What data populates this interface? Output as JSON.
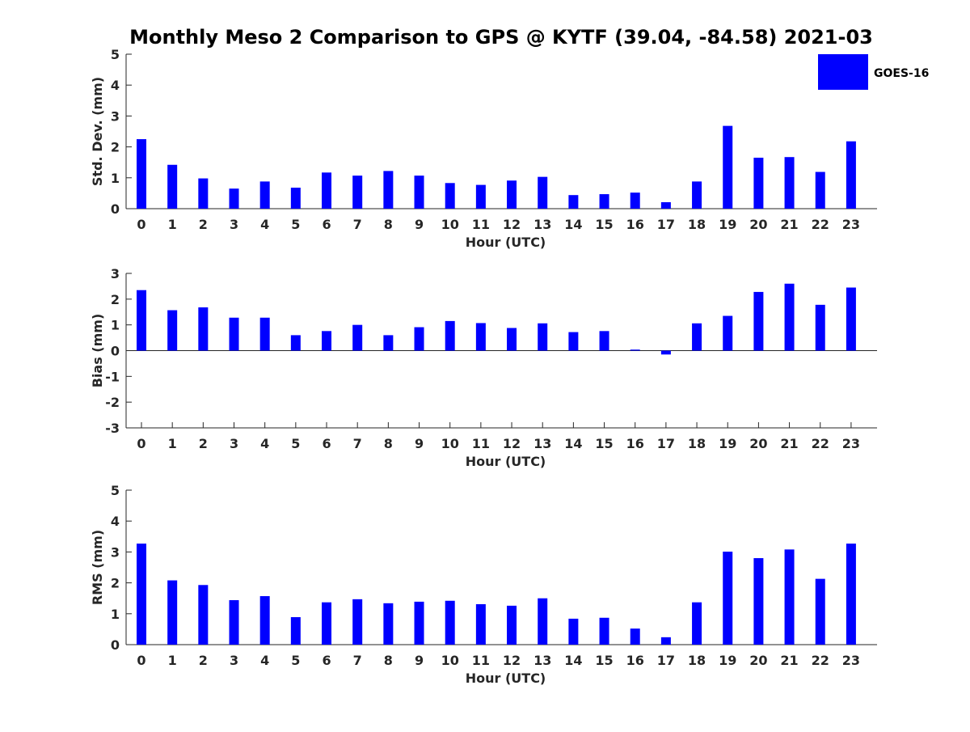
{
  "title": "Monthly Meso 2 Comparison to GPS @ KYTF (39.04, -84.58) 2021-03",
  "legend": {
    "label": "GOES-16",
    "color": "#0000ff",
    "placement": "top-right"
  },
  "chart_data": [
    {
      "type": "bar",
      "xlabel": "Hour (UTC)",
      "ylabel": "Std. Dev. (mm)",
      "ylim": [
        0,
        5
      ],
      "yticks": [
        0,
        1,
        2,
        3,
        4,
        5
      ],
      "categories": [
        "0",
        "1",
        "2",
        "3",
        "4",
        "5",
        "6",
        "7",
        "8",
        "9",
        "10",
        "11",
        "12",
        "13",
        "14",
        "15",
        "16",
        "17",
        "18",
        "19",
        "20",
        "21",
        "22",
        "23"
      ],
      "series": [
        {
          "name": "GOES-16",
          "values": [
            2.25,
            1.42,
            0.98,
            0.65,
            0.88,
            0.68,
            1.17,
            1.07,
            1.22,
            1.07,
            0.83,
            0.77,
            0.91,
            1.03,
            0.44,
            0.47,
            0.52,
            0.21,
            0.88,
            2.68,
            1.65,
            1.67,
            1.19,
            2.18
          ]
        }
      ]
    },
    {
      "type": "bar",
      "xlabel": "Hour (UTC)",
      "ylabel": "Bias (mm)",
      "ylim": [
        -3,
        3
      ],
      "yticks": [
        -3,
        -2,
        -1,
        0,
        1,
        2,
        3
      ],
      "categories": [
        "0",
        "1",
        "2",
        "3",
        "4",
        "5",
        "6",
        "7",
        "8",
        "9",
        "10",
        "11",
        "12",
        "13",
        "14",
        "15",
        "16",
        "17",
        "18",
        "19",
        "20",
        "21",
        "22",
        "23"
      ],
      "series": [
        {
          "name": "GOES-16",
          "values": [
            2.35,
            1.57,
            1.68,
            1.28,
            1.28,
            0.6,
            0.76,
            1.0,
            0.6,
            0.91,
            1.15,
            1.07,
            0.88,
            1.06,
            0.72,
            0.76,
            0.04,
            -0.15,
            1.06,
            1.35,
            2.28,
            2.6,
            1.78,
            2.45
          ]
        }
      ]
    },
    {
      "type": "bar",
      "xlabel": "Hour (UTC)",
      "ylabel": "RMS (mm)",
      "ylim": [
        0,
        5
      ],
      "yticks": [
        0,
        1,
        2,
        3,
        4,
        5
      ],
      "categories": [
        "0",
        "1",
        "2",
        "3",
        "4",
        "5",
        "6",
        "7",
        "8",
        "9",
        "10",
        "11",
        "12",
        "13",
        "14",
        "15",
        "16",
        "17",
        "18",
        "19",
        "20",
        "21",
        "22",
        "23"
      ],
      "series": [
        {
          "name": "GOES-16",
          "values": [
            3.27,
            2.08,
            1.93,
            1.44,
            1.57,
            0.89,
            1.37,
            1.47,
            1.34,
            1.39,
            1.42,
            1.31,
            1.26,
            1.5,
            0.84,
            0.87,
            0.52,
            0.24,
            1.37,
            3.01,
            2.8,
            3.08,
            2.13,
            3.27
          ]
        }
      ]
    }
  ]
}
